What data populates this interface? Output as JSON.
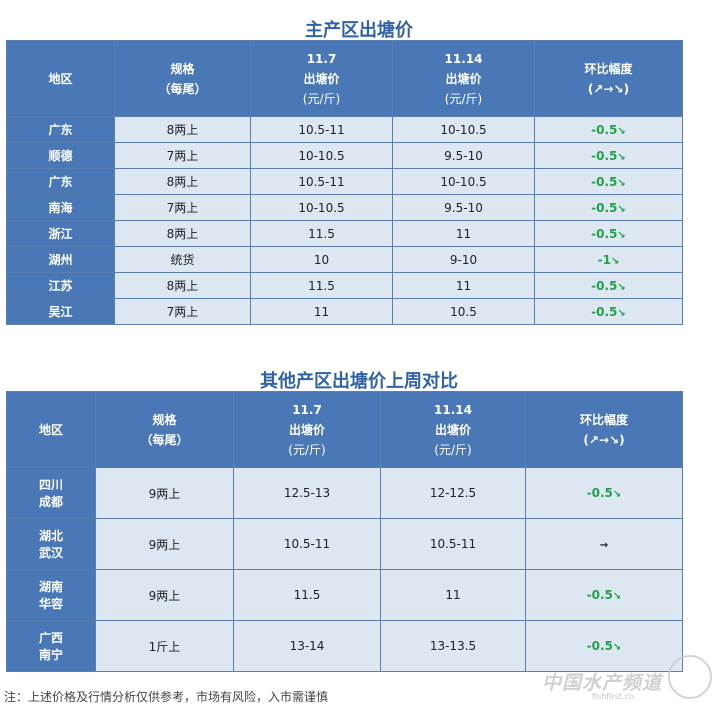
{
  "table1": {
    "title": "主产区出塘价",
    "headers": {
      "region": "地区",
      "spec": "规格",
      "spec_sub": "（每尾）",
      "date1": "11.7",
      "date2": "11.14",
      "price_label": "出塘价",
      "unit": "(元/斤)",
      "change": "环比幅度",
      "change_sub": "(↗→↘)"
    },
    "groups": [
      {
        "region1": "广东",
        "region2": "顺德",
        "rows": [
          {
            "spec": "8两上",
            "p1": "10.5-11",
            "p2": "10-10.5",
            "change": "-0.5",
            "arrow": "↘"
          },
          {
            "spec": "7两上",
            "p1": "10-10.5",
            "p2": "9.5-10",
            "change": "-0.5",
            "arrow": "↘"
          }
        ]
      },
      {
        "region1": "广东",
        "region2": "南海",
        "rows": [
          {
            "spec": "8两上",
            "p1": "10.5-11",
            "p2": "10-10.5",
            "change": "-0.5",
            "arrow": "↘"
          },
          {
            "spec": "7两上",
            "p1": "10-10.5",
            "p2": "9.5-10",
            "change": "-0.5",
            "arrow": "↘"
          }
        ]
      },
      {
        "region1": "浙江",
        "region2": "湖州",
        "rows": [
          {
            "spec": "8两上",
            "p1": "11.5",
            "p2": "11",
            "change": "-0.5",
            "arrow": "↘"
          },
          {
            "spec": "统货",
            "p1": "10",
            "p2": "9-10",
            "change": "-1",
            "arrow": "↘"
          }
        ]
      },
      {
        "region1": "江苏",
        "region2": "吴江",
        "rows": [
          {
            "spec": "8两上",
            "p1": "11.5",
            "p2": "11",
            "change": "-0.5",
            "arrow": "↘"
          },
          {
            "spec": "7两上",
            "p1": "11",
            "p2": "10.5",
            "change": "-0.5",
            "arrow": "↘"
          }
        ]
      }
    ]
  },
  "table2": {
    "title": "其他产区出塘价上周对比",
    "headers": {
      "region": "地区",
      "spec": "规格",
      "spec_sub": "（每尾）",
      "date1": "11.7",
      "date2": "11.14",
      "price_label": "出塘价",
      "unit": "(元/斤)",
      "change": "环比幅度",
      "change_sub": "(↗→↘)"
    },
    "rows": [
      {
        "region1": "四川",
        "region2": "成都",
        "spec": "9两上",
        "p1": "12.5-13",
        "p2": "12-12.5",
        "change": "-0.5",
        "arrow": "↘"
      },
      {
        "region1": "湖北",
        "region2": "武汉",
        "spec": "9两上",
        "p1": "10.5-11",
        "p2": "10.5-11",
        "change": "",
        "arrow": "→"
      },
      {
        "region1": "湖南",
        "region2": "华容",
        "spec": "9两上",
        "p1": "11.5",
        "p2": "11",
        "change": "-0.5",
        "arrow": "↘"
      },
      {
        "region1": "广西",
        "region2": "南宁",
        "spec": "1斤上",
        "p1": "13-14",
        "p2": "13-13.5",
        "change": "-0.5",
        "arrow": "↘"
      }
    ]
  },
  "note": "注：上述价格及行情分析仅供参考，市场有风险，入市需谨慎",
  "watermark": {
    "text": "中国水产频道",
    "url": "fishfirst.cn"
  },
  "colors": {
    "header_bg": "#4a78b6",
    "cell_bg": "#dde7f2",
    "title": "#2f63a6",
    "down": "#22a04a"
  }
}
